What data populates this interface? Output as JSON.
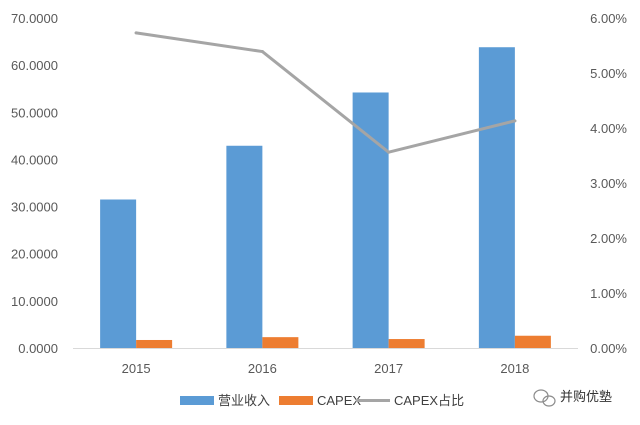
{
  "chart_data": {
    "type": "bar",
    "categories": [
      "2015",
      "2016",
      "2017",
      "2018"
    ],
    "series": [
      {
        "name": "营业收入",
        "type": "bar",
        "axis": "left",
        "color": "#5B9BD5",
        "values": [
          31.5,
          42.9,
          54.2,
          63.8
        ]
      },
      {
        "name": "CAPEX",
        "type": "bar",
        "axis": "left",
        "color": "#ED7D31",
        "values": [
          1.7,
          2.3,
          1.9,
          2.6
        ]
      },
      {
        "name": "CAPEX占比",
        "type": "line",
        "axis": "right",
        "color": "#A5A5A5",
        "values": [
          0.0573,
          0.0539,
          0.0356,
          0.0413
        ]
      }
    ],
    "y_left": {
      "ticks": [
        "0.0000",
        "10.0000",
        "20.0000",
        "30.0000",
        "40.0000",
        "50.0000",
        "60.0000",
        "70.0000"
      ],
      "lim": [
        0,
        70
      ]
    },
    "y_right": {
      "ticks": [
        "0.00%",
        "1.00%",
        "2.00%",
        "3.00%",
        "4.00%",
        "5.00%",
        "6.00%"
      ],
      "lim": [
        0,
        0.06
      ]
    },
    "grid": false,
    "legend_position": "bottom"
  },
  "watermark": {
    "text": "并购优塾",
    "icon": "wechat-icon"
  }
}
